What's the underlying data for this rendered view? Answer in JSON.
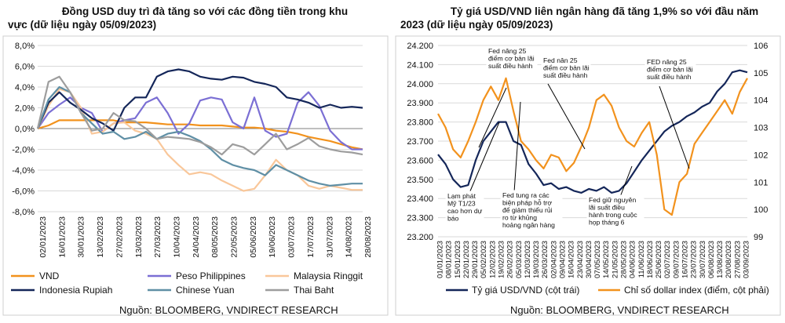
{
  "colors": {
    "vnd": "#f2921d",
    "php": "#7b6fd4",
    "myr": "#f9c79a",
    "idr": "#142659",
    "cny": "#5f8fa5",
    "thb": "#9d9d9d",
    "usdvnd": "#142659",
    "dxy": "#f2921d",
    "grid": "#d9d9d9",
    "zero_line": "#7f7f7f"
  },
  "left": {
    "title_line1": "Đồng USD duy trì đà tăng so với các đồng tiền trong khu",
    "title_line2": "vực (dữ liệu ngày 05/09/2023)",
    "source": "Nguồn: BLOOMBERG, VNDIRECT RESEARCH"
  },
  "right": {
    "title_line1": "Tỷ giá USD/VND liên ngân hàng đã tăng 1,9% so với đầu năm",
    "title_line2": "2023  (dữ liệu ngày 05/09/2023)",
    "source": "Nguồn: BLOOMBERG, VNDIRECT RESEARCH"
  },
  "chart_data": [
    {
      "type": "line",
      "ylim": [
        -8,
        8
      ],
      "y_ticks": [
        "8,0%",
        "6,0%",
        "4,0%",
        "2,0%",
        "0,0%",
        "-2,0%",
        "-4,0%",
        "-6,0%",
        "-8,0%"
      ],
      "x_ticks": [
        "02/01/2023",
        "16/01/2023",
        "30/01/2023",
        "13/02/2023",
        "27/02/2023",
        "13/03/2023",
        "27/03/2023",
        "10/04/2023",
        "24/04/2023",
        "08/05/2023",
        "22/05/2023",
        "05/06/2023",
        "19/06/2023",
        "03/07/2023",
        "17/07/2023",
        "31/07/2023",
        "14/08/2023",
        "28/08/2023"
      ],
      "series": [
        {
          "name": "VND",
          "key": "vnd",
          "values": [
            0,
            0.3,
            0.8,
            0.8,
            0.8,
            0.8,
            0.8,
            0.8,
            0.6,
            0.6,
            0.6,
            0.5,
            0.4,
            0.4,
            0.4,
            0.3,
            0.3,
            0.3,
            0.2,
            0.1,
            0.1,
            0.0,
            -0.2,
            -0.3,
            -0.5,
            -0.8,
            -1.0,
            -1.2,
            -1.5,
            -1.8,
            -2.0
          ]
        },
        {
          "name": "Peso Philippines",
          "key": "php",
          "values": [
            0,
            1.5,
            2.3,
            3.0,
            2.0,
            1.5,
            -0.3,
            0.5,
            0.8,
            1.0,
            2.5,
            3.0,
            1.5,
            -0.5,
            0.5,
            2.7,
            3.0,
            2.8,
            0.6,
            0.0,
            3.0,
            -0.2,
            -0.8,
            -0.5,
            2.5,
            3.5,
            2.2,
            -0.2,
            -1.3,
            -2.0,
            -2.0
          ]
        },
        {
          "name": "Malaysia Ringgit",
          "key": "myr",
          "values": [
            0,
            2.2,
            3.8,
            3.5,
            2.0,
            -0.5,
            -0.3,
            0.5,
            0.6,
            -0.2,
            -0.5,
            -1.0,
            -2.5,
            -3.5,
            -4.4,
            -4.2,
            -4.4,
            -5.0,
            -5.5,
            -6.0,
            -5.8,
            -4.5,
            -3.0,
            -4.0,
            -4.5,
            -5.5,
            -5.8,
            -5.5,
            -5.7,
            -5.9,
            -5.9
          ]
        },
        {
          "name": "Indonesia Rupiah",
          "key": "idr",
          "values": [
            0,
            2.5,
            3.5,
            2.5,
            1.8,
            1.0,
            0.5,
            -0.2,
            2.0,
            3.0,
            3.0,
            5.0,
            5.5,
            5.7,
            5.5,
            5.0,
            4.8,
            4.7,
            5.0,
            4.9,
            4.5,
            4.3,
            4.0,
            3.0,
            2.8,
            2.5,
            2.0,
            2.3,
            2.0,
            2.1,
            2.0
          ]
        },
        {
          "name": "Chinese Yuan",
          "key": "cny",
          "values": [
            0,
            2.8,
            4.0,
            3.5,
            1.5,
            0.5,
            -0.5,
            -0.3,
            -1.0,
            -0.8,
            -0.3,
            -1.0,
            -0.5,
            -0.3,
            -0.7,
            -1.2,
            -2.0,
            -3.0,
            -3.5,
            -3.8,
            -4.0,
            -4.5,
            -3.5,
            -4.0,
            -4.5,
            -5.0,
            -5.3,
            -5.5,
            -5.4,
            -5.3,
            -5.3
          ]
        },
        {
          "name": "Thai Baht",
          "key": "thb",
          "values": [
            0,
            4.5,
            5.0,
            3.5,
            1.5,
            -0.2,
            0.0,
            1.5,
            0.8,
            0.7,
            0.0,
            -1.0,
            -0.8,
            -0.9,
            -1.0,
            -1.3,
            -1.8,
            -2.5,
            -1.5,
            -1.8,
            -2.5,
            -1.5,
            -0.5,
            -2.0,
            -1.5,
            -0.9,
            -1.7,
            -2.0,
            -2.2,
            -2.3,
            -2.5
          ]
        }
      ],
      "legend": {
        "placement": "bottom",
        "rows": [
          [
            "VND",
            "Peso Philippines",
            "Malaysia Ringgit"
          ],
          [
            "Indonesia Rupiah",
            "Chinese Yuan",
            "Thai Baht"
          ]
        ]
      }
    },
    {
      "type": "line",
      "y_left": {
        "lim": [
          23200,
          24200
        ],
        "ticks": [
          "24.200",
          "24.100",
          "24.000",
          "23.900",
          "23.800",
          "23.700",
          "23.600",
          "23.500",
          "23.400",
          "23.300",
          "23.200"
        ]
      },
      "y_right": {
        "lim": [
          99,
          106
        ],
        "ticks": [
          "106",
          "105",
          "104",
          "103",
          "102",
          "101",
          "100",
          "99"
        ]
      },
      "x_ticks": [
        "01/01/2023",
        "15/01/2023",
        "29/01/2023",
        "12/02/2023",
        "26/02/2023",
        "12/03/2023",
        "26/03/2023",
        "09/04/2023",
        "23/04/2023",
        "07/05/2023",
        "21/05/2023",
        "04/06/2023",
        "18/06/2023",
        "02/07/2023",
        "16/07/2023",
        "30/07/2023",
        "13/08/2023",
        "27/08/2023"
      ],
      "x_ticks_full": [
        "01/01/2023",
        "08/01/2023",
        "15/01/2023",
        "22/01/2023",
        "29/01/2023",
        "05/02/2023",
        "12/02/2023",
        "19/02/2023",
        "26/02/2023",
        "05/03/2023",
        "12/03/2023",
        "19/03/2023",
        "26/03/2023",
        "02/04/2023",
        "09/04/2023",
        "16/04/2023",
        "23/04/2023",
        "30/04/2023",
        "07/05/2023",
        "14/05/2023",
        "21/05/2023",
        "28/05/2023",
        "04/06/2023",
        "11/06/2023",
        "18/06/2023",
        "25/06/2023",
        "02/07/2023",
        "09/07/2023",
        "16/07/2023",
        "23/07/2023",
        "30/07/2023",
        "06/08/2023",
        "13/08/2023",
        "20/08/2023",
        "27/08/2023",
        "03/09/2023"
      ],
      "series": [
        {
          "name": "Tỷ giá USD/VND (cột trái)",
          "key": "usdvnd",
          "axis": "left",
          "values": [
            23630,
            23580,
            23500,
            23460,
            23470,
            23600,
            23700,
            23750,
            23800,
            23800,
            23700,
            23680,
            23580,
            23530,
            23470,
            23480,
            23450,
            23460,
            23440,
            23430,
            23450,
            23440,
            23460,
            23430,
            23440,
            23480,
            23540,
            23600,
            23650,
            23700,
            23750,
            23780,
            23800,
            23830,
            23850,
            23880,
            23900,
            23960,
            24000,
            24060,
            24070,
            24060
          ]
        },
        {
          "name": "Chỉ số dollar index (điểm, cột phải)",
          "key": "dxy",
          "axis": "right",
          "values": [
            103.5,
            103.0,
            102.2,
            101.9,
            102.5,
            103.2,
            104.0,
            104.5,
            104.0,
            104.8,
            103.6,
            102.5,
            102.2,
            101.8,
            101.5,
            102.0,
            101.9,
            101.4,
            101.7,
            102.3,
            103.0,
            104.0,
            104.2,
            103.8,
            103.0,
            102.5,
            102.3,
            102.8,
            103.2,
            102.0,
            100.0,
            99.8,
            101.0,
            101.3,
            102.4,
            102.8,
            103.2,
            103.6,
            104.0,
            103.5,
            104.3,
            104.8
          ]
        }
      ],
      "annotations": [
        "Fed nâng 25 điểm cơ bản lãi suất điều hành",
        "Fed nân 25 điểm cơ bản lãi suất điều hành",
        "FED nâng 25 điểm cơ bản lãi suất điều hành",
        "Lạm phát Mỹ T1/23 cao hơn dự báo",
        "Fed tung ra các biện pháp hỗ trợ để giảm thiểu rủi ro từ khủng hoảng ngân hàng",
        "Fed giữ nguyên lãi suất điều hành trong cuộc họp tháng 6"
      ],
      "legend": {
        "placement": "bottom"
      }
    }
  ]
}
